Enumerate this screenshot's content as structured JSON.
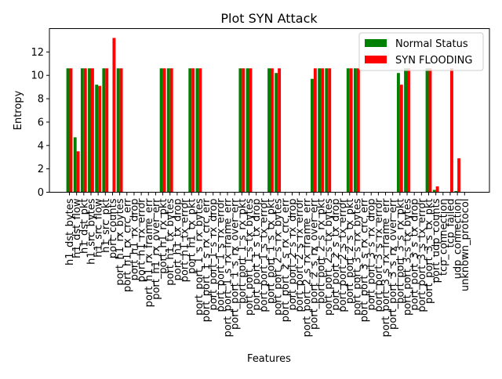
{
  "chart_data": {
    "type": "bar",
    "title": "Plot SYN Attack",
    "xlabel": "Features",
    "ylabel": "Entropy",
    "ylim": [
      0,
      14
    ],
    "yticks": [
      0,
      2,
      4,
      6,
      8,
      10,
      12
    ],
    "legend_position": "top-right",
    "categories": [
      "h1_dst_bytes",
      "h1_dst_flow",
      "h1_dst_pkt",
      "h1_src_bytes",
      "h1_src_flow",
      "h1_src_pkt",
      "port_counts",
      "port_h1_rx_bytes",
      "port_h1_rx_crc_err",
      "port_h1_rx_drop",
      "port_h1_rx_error",
      "port_h1_rx_frame_err",
      "port_h1_rx_over_err",
      "port_h1_rx_pkt",
      "port_h1_tx_bytes",
      "port_h1_tx_drop",
      "port_h1_tx_error",
      "port_h1_tx_pkt",
      "port_port_1_s_rx_bytes",
      "port_port_1_s_rx_crc_err",
      "port_port_1_s_rx_drop",
      "port_port_1_s_rx_error",
      "port_port_1_s_rx_frame_err",
      "port_port_1_s_rx_over_err",
      "port_port_1_s_rx_pkt",
      "port_port_1_s_tx_bytes",
      "port_port_1_s_tx_drop",
      "port_port_1_s_tx_error",
      "port_port_1_s_tx_pkt",
      "port_port_2_s_rx_bytes",
      "port_port_2_s_rx_crc_err",
      "port_port_2_s_rx_drop",
      "port_port_2_s_rx_error",
      "port_port_2_s_rx_frame_err",
      "port_port_2_s_rx_over_err",
      "port_port_2_s_rx_pkt",
      "port_port_2_s_tx_bytes",
      "port_port_2_s_tx_drop",
      "port_port_2_s_tx_error",
      "port_port_2_s_tx_pkt",
      "port_port_3_s_rx_bytes",
      "port_port_3_s_rx_crc_err",
      "port_port_3_s_rx_drop",
      "port_port_3_s_rx_error",
      "port_port_3_s_rx_frame_err",
      "port_port_3_s_rx_over_err",
      "port_port_3_s_rx_pkt",
      "port_port_3_s_tx_bytes",
      "port_port_3_s_tx_drop",
      "port_port_3_s_tx_error",
      "port_port_3_s_tx_pkt",
      "port_udp_counts",
      "tcp_connection",
      "tcp_failed",
      "udp_connection",
      "unknown_protocol"
    ],
    "series": [
      {
        "name": "Normal Status",
        "color": "#008000",
        "values": [
          10.6,
          4.7,
          10.6,
          10.6,
          9.2,
          10.6,
          0,
          10.6,
          0,
          0,
          0,
          0,
          0,
          10.6,
          10.6,
          0,
          0,
          10.6,
          10.6,
          0,
          0,
          0,
          0,
          0,
          10.6,
          10.6,
          0,
          0,
          10.6,
          10.2,
          0,
          0,
          0,
          0,
          9.7,
          10.6,
          10.6,
          0,
          0,
          10.6,
          10.6,
          0,
          0,
          0,
          0,
          0,
          10.2,
          10.6,
          0,
          0,
          10.6,
          0.2,
          0,
          0,
          0.1,
          0
        ]
      },
      {
        "name": "SYN FLOODING",
        "color": "#ff0000",
        "values": [
          10.6,
          3.5,
          10.6,
          10.6,
          9.1,
          10.6,
          13.2,
          10.6,
          0,
          0,
          0,
          0,
          0,
          10.6,
          10.6,
          0,
          0,
          10.6,
          10.6,
          0,
          0,
          0,
          0,
          0,
          10.6,
          10.6,
          0,
          0,
          10.6,
          10.6,
          0,
          0,
          0,
          0,
          10.6,
          10.6,
          10.6,
          0,
          0,
          10.6,
          10.6,
          0,
          0,
          0,
          0,
          0,
          9.2,
          10.6,
          0,
          0,
          10.6,
          0.5,
          0,
          10.6,
          2.9,
          0
        ]
      }
    ]
  }
}
